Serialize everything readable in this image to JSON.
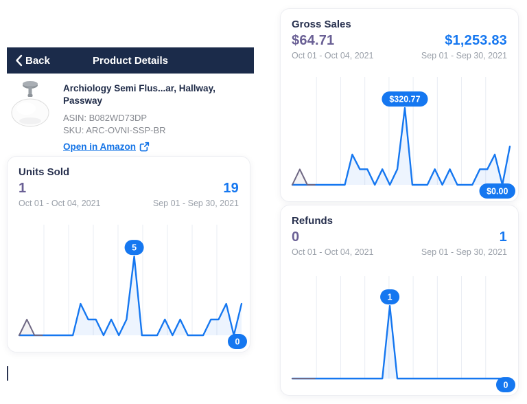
{
  "colors": {
    "accent_blue": "#1577F0",
    "accent_purple": "#6A6095",
    "line_purple": "#6E6783",
    "navy": "#1B2B4A",
    "grid": "#E9ECF3"
  },
  "header": {
    "back_label": "Back",
    "title": "Product Details"
  },
  "product": {
    "title": "Archiology Semi Flus...ar, Hallway, Passway",
    "asin": "ASIN: B082WD73DP",
    "sku": "SKU: ARC-OVNI-SSP-BR",
    "link_label": "Open in Amazon"
  },
  "cards": [
    {
      "title": "Units Sold",
      "current_value": "1",
      "previous_value": "19",
      "current_range": "Oct 01 - Oct 04, 2021",
      "previous_range": "Sep 01 - Sep 30, 2021"
    },
    {
      "title": "Gross Sales",
      "current_value": "$64.71",
      "previous_value": "$1,253.83",
      "current_range": "Oct 01 - Oct 04, 2021",
      "previous_range": "Sep 01 - Sep 30, 2021"
    },
    {
      "title": "Refunds",
      "current_value": "0",
      "previous_value": "1",
      "current_range": "Oct 01 - Oct 04, 2021",
      "previous_range": "Sep 01 - Sep 30, 2021"
    }
  ],
  "chart_data": [
    {
      "type": "line",
      "title": "Units Sold",
      "x": {
        "unit": "day",
        "count": 30
      },
      "ylim": [
        0,
        7
      ],
      "grid": {
        "vertical_divisions": 9,
        "horizontal": false
      },
      "legend_position": "none",
      "series": [
        {
          "name": "Sep 01 - Sep 30, 2021",
          "color": "#1577F0",
          "total": 19,
          "values": [
            0,
            0,
            0,
            0,
            0,
            0,
            0,
            0,
            2,
            1,
            1,
            0,
            1,
            0,
            1,
            5,
            0,
            0,
            0,
            1,
            0,
            1,
            0,
            0,
            0,
            1,
            1,
            2,
            0,
            2
          ]
        },
        {
          "name": "Oct 01 - Oct 04, 2021",
          "color": "#6E6783",
          "total": 1,
          "values": [
            0,
            1,
            0,
            0
          ]
        }
      ],
      "badges": {
        "max": "5",
        "min": "0"
      }
    },
    {
      "type": "line",
      "title": "Gross Sales",
      "x": {
        "unit": "day",
        "count": 30
      },
      "ylim": [
        0,
        430
      ],
      "grid": {
        "vertical_divisions": 9,
        "horizontal": false
      },
      "legend_position": "none",
      "series": [
        {
          "name": "Sep 01 - Sep 30, 2021",
          "color": "#1577F0",
          "total": 1253.83,
          "values": [
            0,
            0,
            0,
            0,
            0,
            0,
            0,
            0,
            126.5,
            65,
            65,
            0,
            65,
            0,
            65,
            320.77,
            0,
            0,
            0,
            65,
            0,
            65,
            0,
            0,
            0,
            65,
            65,
            126.5,
            0,
            160.06
          ]
        },
        {
          "name": "Oct 01 - Oct 04, 2021",
          "color": "#6E6783",
          "total": 64.71,
          "values": [
            0,
            64.71,
            0,
            0
          ]
        }
      ],
      "badges": {
        "max": "$320.77",
        "min": "$0.00"
      }
    },
    {
      "type": "line",
      "title": "Refunds",
      "x": {
        "unit": "day",
        "count": 30
      },
      "ylim": [
        0,
        1.35
      ],
      "grid": {
        "vertical_divisions": 9,
        "horizontal": false
      },
      "legend_position": "none",
      "series": [
        {
          "name": "Sep 01 - Sep 30, 2021",
          "color": "#1577F0",
          "total": 1,
          "values": [
            0,
            0,
            0,
            0,
            0,
            0,
            0,
            0,
            0,
            0,
            0,
            0,
            0,
            1,
            0,
            0,
            0,
            0,
            0,
            0,
            0,
            0,
            0,
            0,
            0,
            0,
            0,
            0,
            0,
            0
          ]
        },
        {
          "name": "Oct 01 - Oct 04, 2021",
          "color": "#6E6783",
          "total": 0,
          "values": [
            0,
            0,
            0,
            0
          ]
        }
      ],
      "badges": {
        "max": "1",
        "min": "0"
      }
    }
  ]
}
